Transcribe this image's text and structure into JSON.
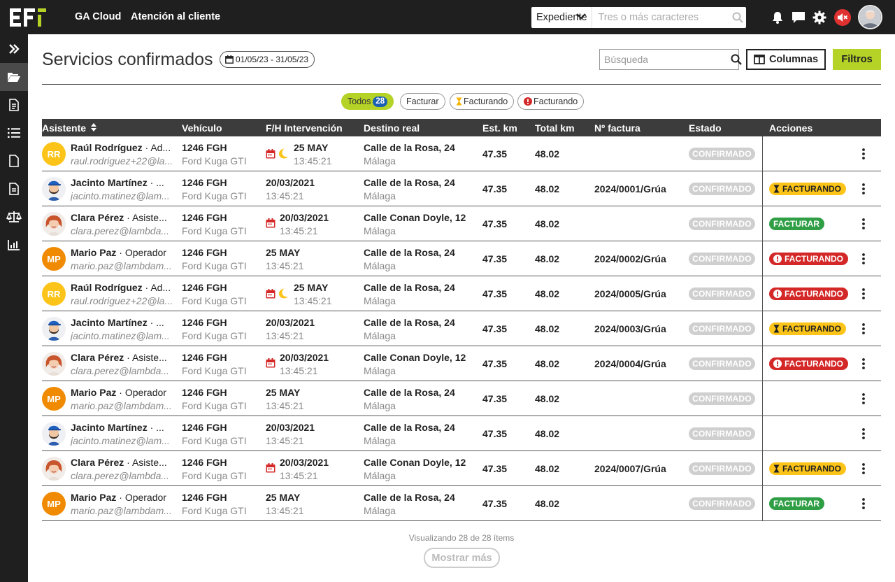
{
  "header": {
    "nav": [
      "GA Cloud",
      "Atención al cliente"
    ],
    "search": {
      "type_value": "Expediente",
      "placeholder": "Tres o más caracteres"
    },
    "icons": [
      "bell-icon",
      "chat-icon",
      "gear-icon",
      "mute-icon"
    ]
  },
  "sidebar": {
    "items": [
      "expand-icon",
      "folder-open-icon",
      "document-icon",
      "list-icon",
      "file-icon",
      "file-text-icon",
      "balance-icon",
      "chart-icon"
    ]
  },
  "page": {
    "title": "Servicios confirmados",
    "date_range": "01/05/23 - 31/05/23",
    "search_placeholder": "Búsqueda",
    "columns_label": "Columnas",
    "filters_label": "Filtros"
  },
  "filter_chips": [
    {
      "label": "Todos",
      "count": "28"
    },
    {
      "label": "Facturar"
    },
    {
      "label": "Facturando",
      "icon": "hourglass-icon"
    },
    {
      "label": "Facturando",
      "icon": "alert-icon"
    }
  ],
  "table": {
    "headers": [
      "Asistente",
      "Vehículo",
      "F/H Intervención",
      "Destino real",
      "Est. km",
      "Total km",
      "Nº factura",
      "Estado",
      "Acciones"
    ],
    "rows": [
      {
        "name": "Raúl Rodríguez",
        "role": "Ad...",
        "email": "raul.rodriguez+22@la...",
        "avatar": "RR",
        "plate": "1246 FGH",
        "model": "Ford Kuga GTI",
        "date": "25 MAY",
        "time": "13:45:21",
        "icons": [
          "calendar",
          "moon"
        ],
        "dest": "Calle de la Rosa, 24",
        "city": "Málaga",
        "est": "47.35",
        "total": "48.02",
        "invoice": "",
        "status": "CONFIRMADO",
        "action": ""
      },
      {
        "name": "Jacinto Martínez",
        "role": "...",
        "email": "jacinto.matinez@lam...",
        "avatar": "photo-man",
        "plate": "1246 FGH",
        "model": "Ford Kuga GTI",
        "date": "20/03/2021",
        "time": "13:45:21",
        "icons": [],
        "dest": "Calle de la Rosa, 24",
        "city": "Málaga",
        "est": "47.35",
        "total": "48.02",
        "invoice": "2024/0001/Grúa",
        "status": "CONFIRMADO",
        "action": "FACTURANDO",
        "action_style": "yellow"
      },
      {
        "name": "Clara Pérez",
        "role": "Asiste...",
        "email": "clara.perez@lambda...",
        "avatar": "photo-woman",
        "plate": "1246 FGH",
        "model": "Ford Kuga GTI",
        "date": "20/03/2021",
        "time": "13:45:21",
        "icons": [
          "calendar"
        ],
        "dest": "Calle Conan Doyle, 12",
        "city": "Málaga",
        "est": "47.35",
        "total": "48.02",
        "invoice": "",
        "status": "CONFIRMADO",
        "action": "FACTURAR",
        "action_style": "green"
      },
      {
        "name": "Mario Paz",
        "role": "Operador",
        "email": "mario.paz@lambdam...",
        "avatar": "MP",
        "plate": "1246 FGH",
        "model": "Ford Kuga GTI",
        "date": "25 MAY",
        "time": "13:45:21",
        "icons": [],
        "dest": "Calle de la Rosa, 24",
        "city": "Málaga",
        "est": "47.35",
        "total": "48.02",
        "invoice": "2024/0002/Grúa",
        "status": "CONFIRMADO",
        "action": "FACTURANDO",
        "action_style": "red"
      },
      {
        "name": "Raúl Rodríguez",
        "role": "Ad...",
        "email": "raul.rodriguez+22@la...",
        "avatar": "RR",
        "plate": "1246 FGH",
        "model": "Ford Kuga GTI",
        "date": "25 MAY",
        "time": "13:45:21",
        "icons": [
          "calendar",
          "moon"
        ],
        "dest": "Calle de la Rosa, 24",
        "city": "Málaga",
        "est": "47.35",
        "total": "48.02",
        "invoice": "2024/0005/Grúa",
        "status": "CONFIRMADO",
        "action": "FACTURANDO",
        "action_style": "red"
      },
      {
        "name": "Jacinto Martínez",
        "role": "...",
        "email": "jacinto.matinez@lam...",
        "avatar": "photo-man",
        "plate": "1246 FGH",
        "model": "Ford Kuga GTI",
        "date": "20/03/2021",
        "time": "13:45:21",
        "icons": [],
        "dest": "Calle de la Rosa, 24",
        "city": "Málaga",
        "est": "47.35",
        "total": "48.02",
        "invoice": "2024/0003/Grúa",
        "status": "CONFIRMADO",
        "action": "FACTURANDO",
        "action_style": "yellow"
      },
      {
        "name": "Clara Pérez",
        "role": "Asiste...",
        "email": "clara.perez@lambda...",
        "avatar": "photo-woman",
        "plate": "1246 FGH",
        "model": "Ford Kuga GTI",
        "date": "20/03/2021",
        "time": "13:45:21",
        "icons": [
          "calendar"
        ],
        "dest": "Calle Conan Doyle, 12",
        "city": "Málaga",
        "est": "47.35",
        "total": "48.02",
        "invoice": "2024/0004/Grúa",
        "status": "CONFIRMADO",
        "action": "FACTURANDO",
        "action_style": "red"
      },
      {
        "name": "Mario Paz",
        "role": "Operador",
        "email": "mario.paz@lambdam...",
        "avatar": "MP",
        "plate": "1246 FGH",
        "model": "Ford Kuga GTI",
        "date": "25 MAY",
        "time": "13:45:21",
        "icons": [],
        "dest": "Calle de la Rosa, 24",
        "city": "Málaga",
        "est": "47.35",
        "total": "48.02",
        "invoice": "",
        "status": "CONFIRMADO",
        "action": ""
      },
      {
        "name": "Jacinto Martínez",
        "role": "...",
        "email": "jacinto.matinez@lam...",
        "avatar": "photo-man",
        "plate": "1246 FGH",
        "model": "Ford Kuga GTI",
        "date": "20/03/2021",
        "time": "13:45:21",
        "icons": [],
        "dest": "Calle de la Rosa, 24",
        "city": "Málaga",
        "est": "47.35",
        "total": "48.02",
        "invoice": "",
        "status": "CONFIRMADO",
        "action": ""
      },
      {
        "name": "Clara Pérez",
        "role": "Asiste...",
        "email": "clara.perez@lambda...",
        "avatar": "photo-woman",
        "plate": "1246 FGH",
        "model": "Ford Kuga GTI",
        "date": "20/03/2021",
        "time": "13:45:21",
        "icons": [
          "calendar"
        ],
        "dest": "Calle Conan Doyle, 12",
        "city": "Málaga",
        "est": "47.35",
        "total": "48.02",
        "invoice": "2024/0007/Grúa",
        "status": "CONFIRMADO",
        "action": "FACTURANDO",
        "action_style": "yellow"
      },
      {
        "name": "Mario Paz",
        "role": "Operador",
        "email": "mario.paz@lambdam...",
        "avatar": "MP",
        "plate": "1246 FGH",
        "model": "Ford Kuga GTI",
        "date": "25 MAY",
        "time": "13:45:21",
        "icons": [],
        "dest": "Calle de la Rosa, 24",
        "city": "Málaga",
        "est": "47.35",
        "total": "48.02",
        "invoice": "",
        "status": "CONFIRMADO",
        "action": "FACTURAR",
        "action_style": "green"
      }
    ]
  },
  "footer": {
    "count_text": "Visualizando 28 de 28 ítems",
    "more_label": "Mostrar más"
  },
  "colors": {
    "accent": "#b5d327",
    "topbar": "#1f1f1f",
    "badge_yellow": "#fcc419",
    "badge_green": "#2f9e44",
    "badge_red": "#d42828",
    "badge_confirmed": "#cfcfcf"
  }
}
